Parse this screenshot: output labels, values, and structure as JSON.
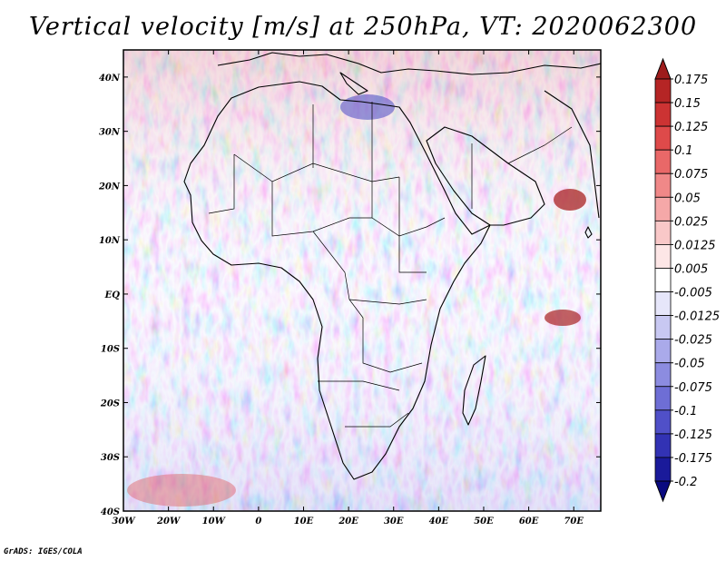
{
  "title": "Vertical velocity [m/s] at 250hPa, VT: 2020062300",
  "credit": "GrADS: IGES/COLA",
  "map": {
    "lon_range": [
      -30,
      76
    ],
    "lat_range": [
      -40,
      45
    ],
    "x_ticks": [
      "30W",
      "20W",
      "10W",
      "0",
      "10E",
      "20E",
      "30E",
      "40E",
      "50E",
      "60E",
      "70E"
    ],
    "x_tick_values": [
      -30,
      -20,
      -10,
      0,
      10,
      20,
      30,
      40,
      50,
      60,
      70
    ],
    "y_ticks": [
      "40N",
      "30N",
      "20N",
      "10N",
      "EQ",
      "10S",
      "20S",
      "30S",
      "40S"
    ],
    "y_tick_values": [
      40,
      30,
      20,
      10,
      0,
      -10,
      -20,
      -30,
      -40
    ],
    "field": "vertical velocity",
    "units": "m/s",
    "level": "250hPa"
  },
  "colorbar": {
    "labels": [
      "0.175",
      "0.15",
      "0.125",
      "0.1",
      "0.075",
      "0.05",
      "0.025",
      "0.0125",
      "0.005",
      "-0.005",
      "-0.0125",
      "-0.025",
      "-0.05",
      "-0.075",
      "-0.1",
      "-0.125",
      "-0.175",
      "-0.2"
    ],
    "colors": [
      "#9e1c1c",
      "#b52525",
      "#cc3333",
      "#de4a4a",
      "#e96868",
      "#f08888",
      "#f5a8a8",
      "#f9c8c8",
      "#fde6e6",
      "#ffffff",
      "#e6e6fa",
      "#c8c8f2",
      "#aaaaea",
      "#8c8ce0",
      "#6e6ed5",
      "#5050c8",
      "#3232b4",
      "#1a1a9a",
      "#0a0a80"
    ]
  }
}
